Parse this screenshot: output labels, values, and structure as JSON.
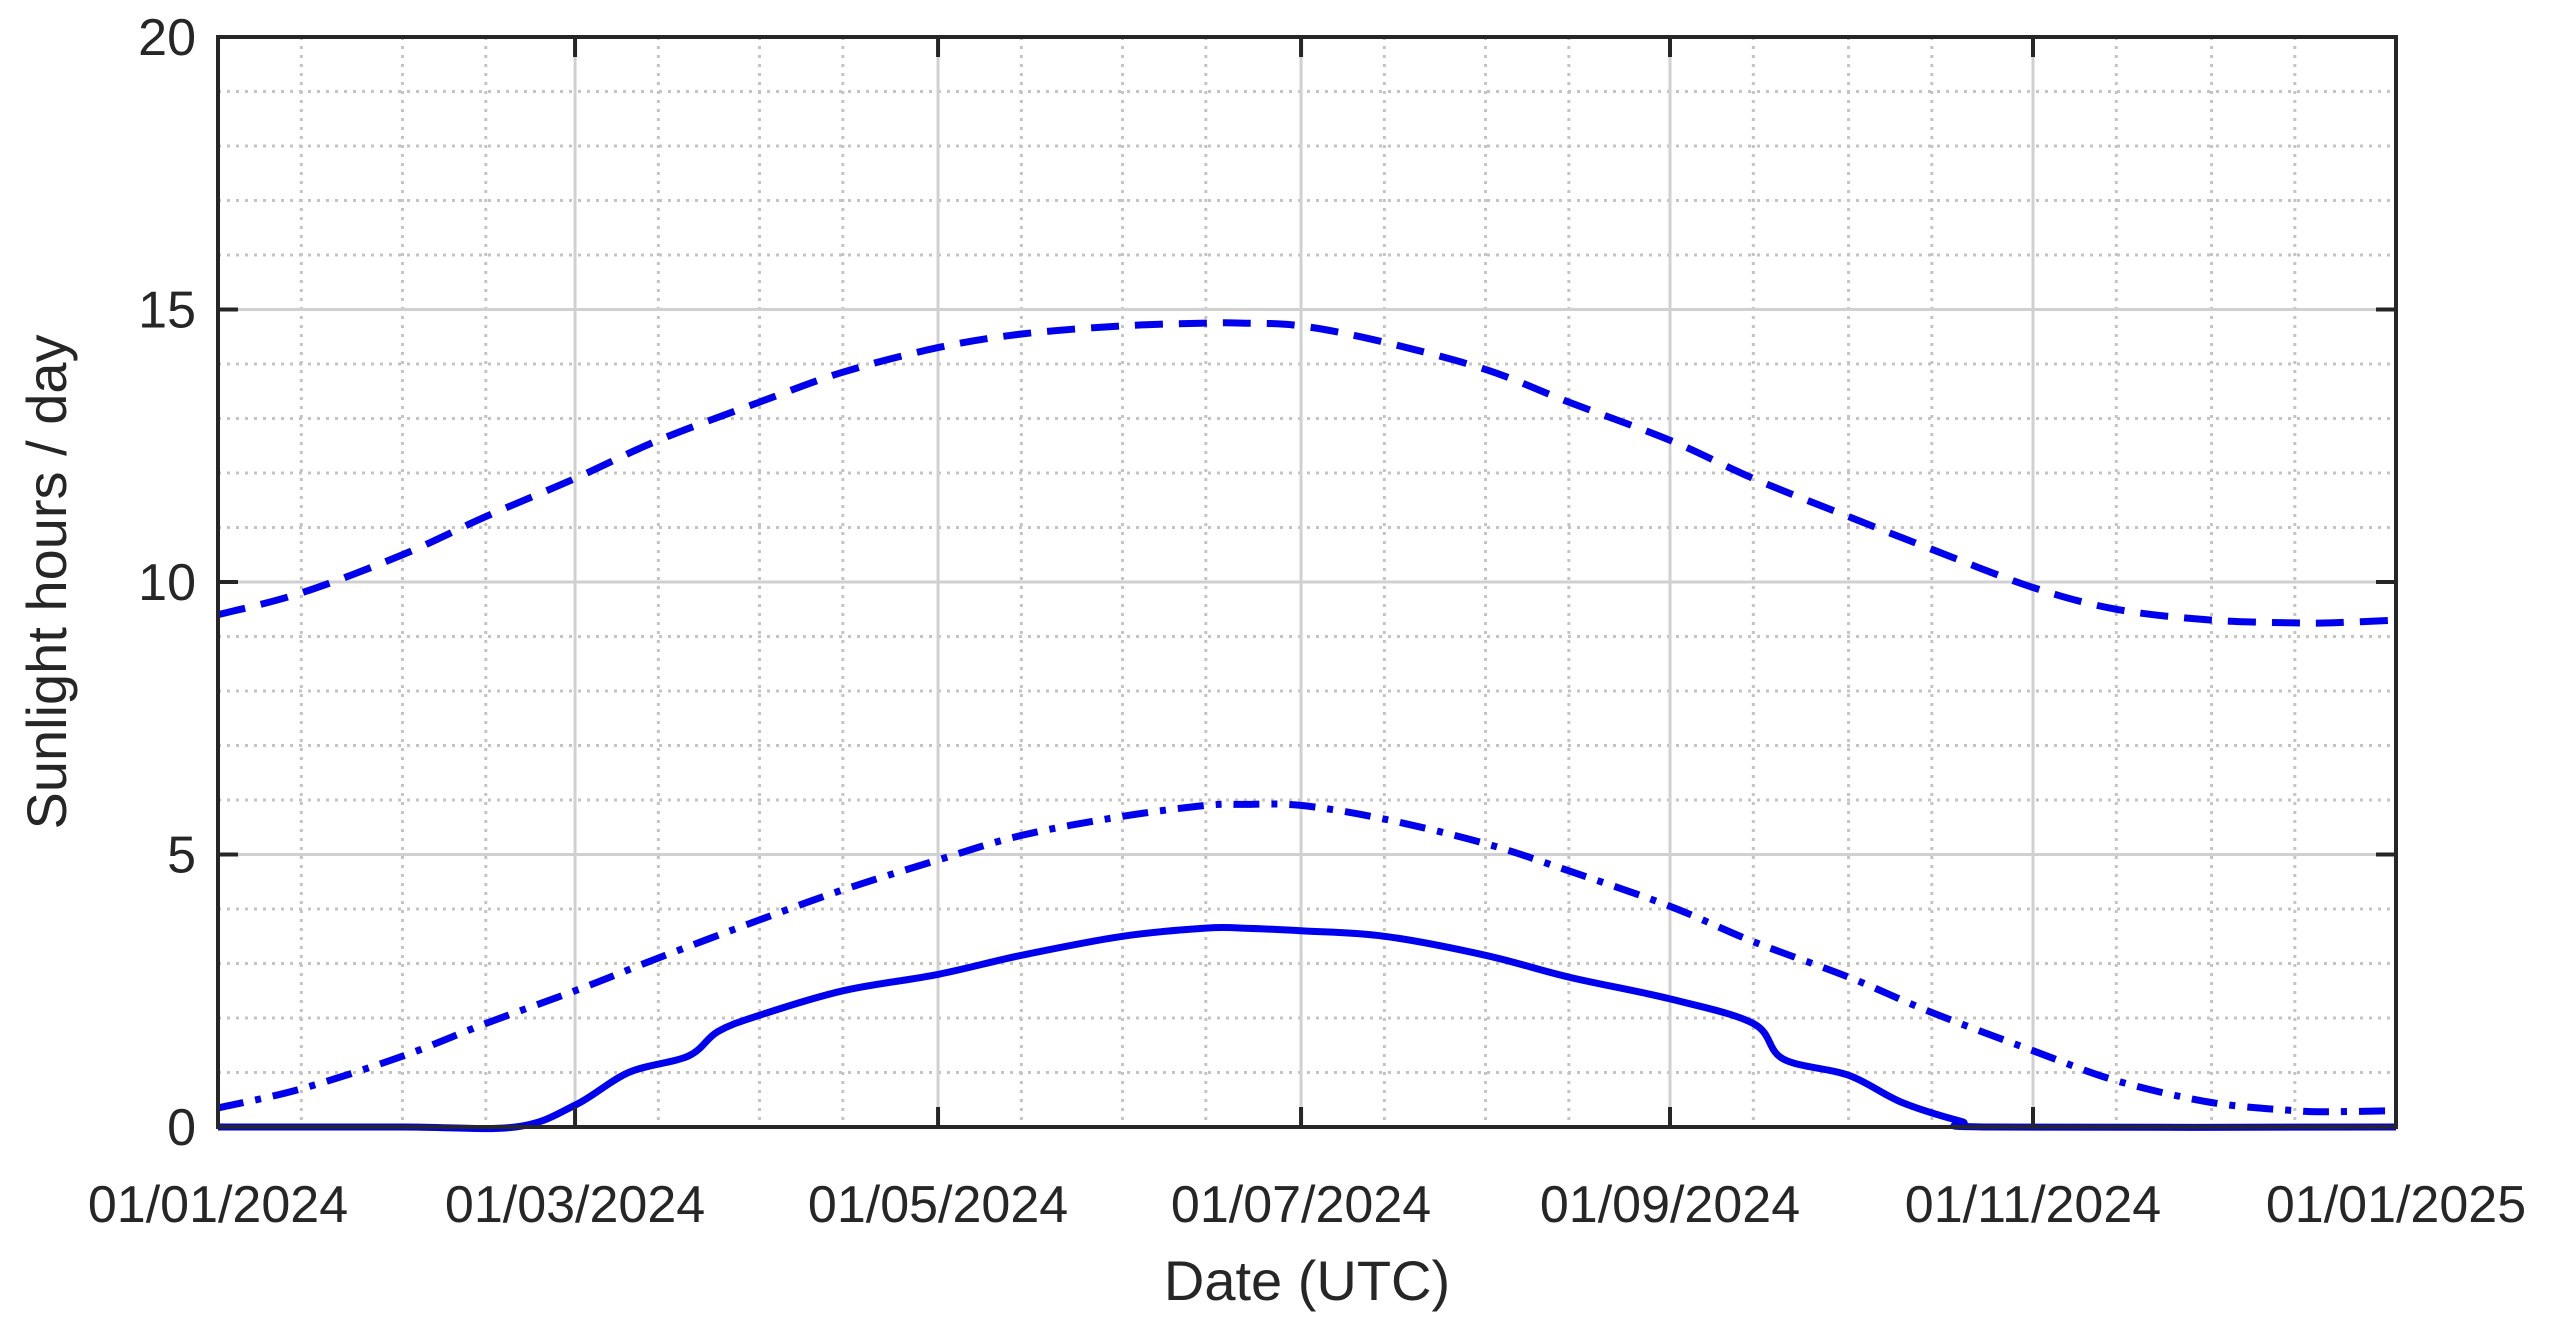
{
  "chart_data": {
    "type": "line",
    "xlabel": "Date (UTC)",
    "ylabel": "Sunlight hours / day",
    "xlim": [
      "2024-01-01",
      "2025-01-01"
    ],
    "ylim": [
      0,
      20
    ],
    "x_ticks": [
      "01/01/2024",
      "01/03/2024",
      "01/05/2024",
      "01/07/2024",
      "01/09/2024",
      "01/11/2024",
      "01/01/2025"
    ],
    "y_ticks": [
      "0",
      "5",
      "10",
      "15",
      "20"
    ],
    "grid": true,
    "minor_grid": true,
    "legend": "none",
    "colors": {
      "series": "#0000ee",
      "axis": "#262626",
      "major_grid": "#d0d0d0",
      "minor_grid": "#c4c4c4"
    },
    "series": [
      {
        "line_style": "dashed",
        "x": [
          "2024-01-01",
          "2024-01-15",
          "2024-02-01",
          "2024-02-15",
          "2024-03-01",
          "2024-03-15",
          "2024-04-01",
          "2024-04-15",
          "2024-05-01",
          "2024-05-15",
          "2024-06-01",
          "2024-06-15",
          "2024-06-21",
          "2024-07-01",
          "2024-07-15",
          "2024-08-01",
          "2024-08-15",
          "2024-09-01",
          "2024-09-15",
          "2024-10-01",
          "2024-10-15",
          "2024-11-01",
          "2024-11-15",
          "2024-12-01",
          "2024-12-15",
          "2024-12-21",
          "2025-01-01"
        ],
        "y": [
          9.4,
          9.8,
          10.5,
          11.2,
          11.9,
          12.6,
          13.3,
          13.85,
          14.3,
          14.55,
          14.7,
          14.75,
          14.75,
          14.7,
          14.4,
          13.9,
          13.3,
          12.6,
          11.9,
          11.2,
          10.6,
          9.9,
          9.5,
          9.3,
          9.25,
          9.25,
          9.3
        ]
      },
      {
        "line_style": "dash-dot",
        "x": [
          "2024-01-01",
          "2024-01-15",
          "2024-02-01",
          "2024-02-15",
          "2024-03-01",
          "2024-03-15",
          "2024-04-01",
          "2024-04-15",
          "2024-05-01",
          "2024-05-15",
          "2024-06-01",
          "2024-06-15",
          "2024-06-21",
          "2024-07-01",
          "2024-07-15",
          "2024-08-01",
          "2024-08-15",
          "2024-09-01",
          "2024-09-15",
          "2024-10-01",
          "2024-10-15",
          "2024-11-01",
          "2024-11-15",
          "2024-12-01",
          "2024-12-15",
          "2024-12-21",
          "2025-01-01"
        ],
        "y": [
          0.35,
          0.7,
          1.3,
          1.9,
          2.5,
          3.1,
          3.8,
          4.35,
          4.9,
          5.35,
          5.7,
          5.9,
          5.92,
          5.9,
          5.65,
          5.2,
          4.7,
          4.05,
          3.4,
          2.75,
          2.1,
          1.4,
          0.85,
          0.45,
          0.3,
          0.28,
          0.3
        ]
      },
      {
        "line_style": "solid",
        "x": [
          "2024-01-01",
          "2024-02-01",
          "2024-02-20",
          "2024-03-01",
          "2024-03-10",
          "2024-03-20",
          "2024-03-25",
          "2024-04-01",
          "2024-04-15",
          "2024-05-01",
          "2024-05-15",
          "2024-06-01",
          "2024-06-15",
          "2024-06-21",
          "2024-07-01",
          "2024-07-15",
          "2024-08-01",
          "2024-08-15",
          "2024-09-01",
          "2024-09-15",
          "2024-09-20",
          "2024-10-01",
          "2024-10-10",
          "2024-10-20",
          "2024-10-25",
          "2025-01-01"
        ],
        "y": [
          0,
          0,
          0,
          0.4,
          1.0,
          1.3,
          1.75,
          2.05,
          2.5,
          2.8,
          3.15,
          3.5,
          3.65,
          3.65,
          3.6,
          3.5,
          3.15,
          2.75,
          2.35,
          1.9,
          1.25,
          0.95,
          0.45,
          0.1,
          0,
          0
        ]
      }
    ]
  }
}
